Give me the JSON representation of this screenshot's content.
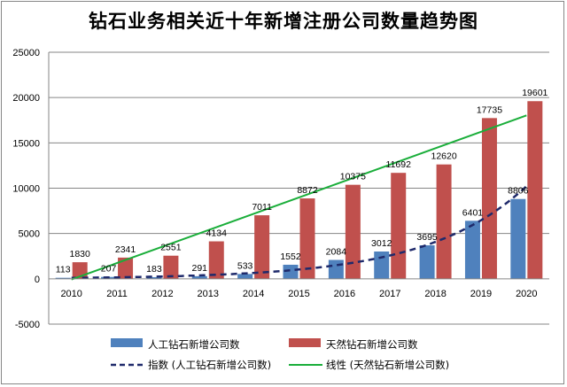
{
  "chart_data": {
    "type": "bar",
    "title": "钻石业务相关近十年新增注册公司数量趋势图",
    "categories": [
      "2010",
      "2011",
      "2012",
      "2013",
      "2014",
      "2015",
      "2016",
      "2017",
      "2018",
      "2019",
      "2020"
    ],
    "ylim": [
      -5000,
      25000
    ],
    "yticks": [
      -5000,
      0,
      5000,
      10000,
      15000,
      20000,
      25000
    ],
    "grid": true,
    "legend_position": "bottom",
    "series": [
      {
        "name": "人工钻石新增公司数",
        "color": "#4f81bd",
        "values": [
          113,
          207,
          183,
          291,
          533,
          1552,
          2084,
          3012,
          3695,
          6401,
          8806
        ]
      },
      {
        "name": "天然钻石新增公司数",
        "color": "#c0504d",
        "values": [
          1830,
          2341,
          2551,
          4134,
          7011,
          8872,
          10375,
          11692,
          12620,
          17735,
          19601
        ]
      }
    ],
    "trendlines": [
      {
        "name": "指数 (人工钻石新增公司数)",
        "type": "exponential",
        "of": "人工钻石新增公司数",
        "color": "#1f2a6b",
        "style": "dashed"
      },
      {
        "name": "线性 (天然钻石新增公司数)",
        "type": "linear",
        "of": "天然钻石新增公司数",
        "color": "#1aae3a",
        "style": "solid"
      }
    ]
  }
}
